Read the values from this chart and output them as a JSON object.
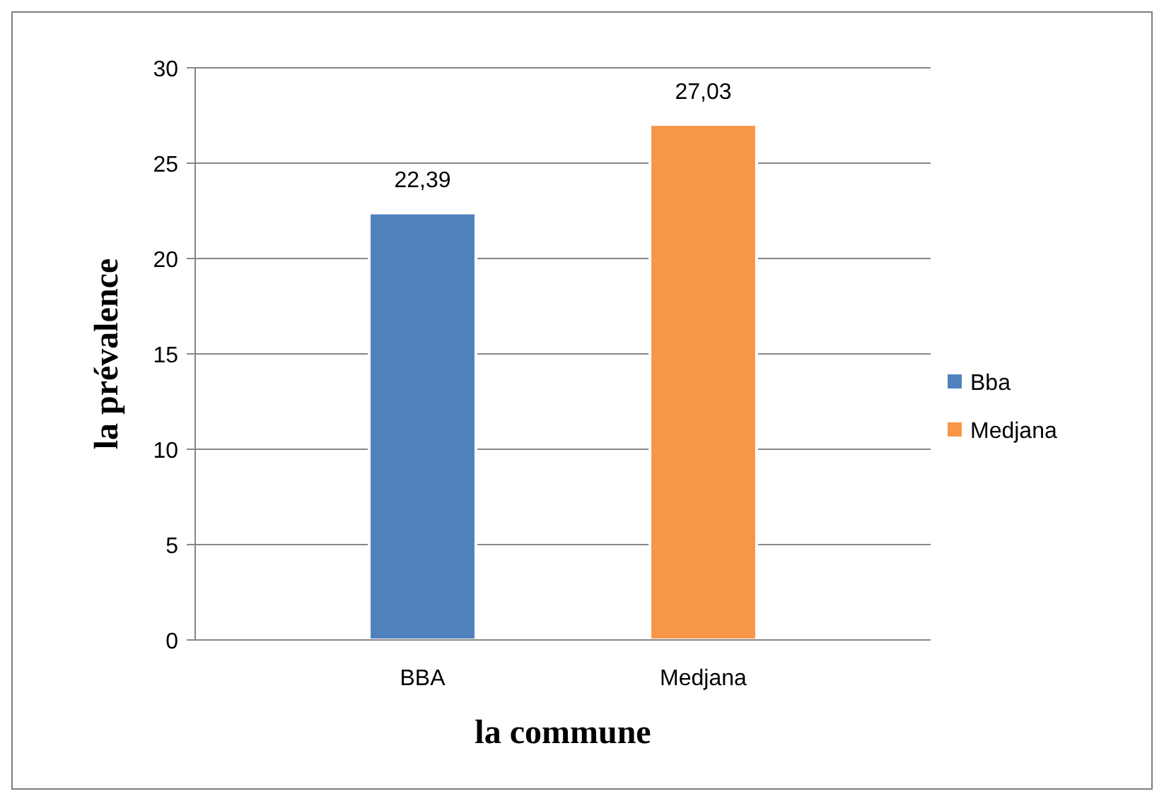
{
  "chart_data": {
    "type": "bar",
    "xlabel": "la commune",
    "ylabel": "la prévalence",
    "categories": [
      "BBA",
      "Medjana"
    ],
    "series": [
      {
        "name": "Bba",
        "color": "#4f81bd",
        "values": [
          22.39,
          null
        ]
      },
      {
        "name": "Medjana",
        "color": "#f79646",
        "values": [
          null,
          27.03
        ]
      }
    ],
    "value_labels": [
      "22,39",
      "27,03"
    ],
    "ylim": [
      0,
      30
    ],
    "yticks": [
      0,
      5,
      10,
      15,
      20,
      25,
      30
    ],
    "grid": "y",
    "legend": "right"
  }
}
